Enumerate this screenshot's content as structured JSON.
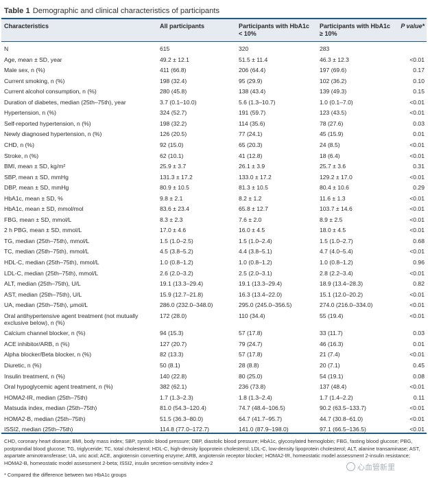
{
  "caption": {
    "label": "Table 1",
    "title": "Demographic and clinical characteristics of participants"
  },
  "headers": [
    "Characteristics",
    "All participants",
    "Participants with HbA1c < 10%",
    "Participants with HbA1c ≥ 10%",
    "P value*"
  ],
  "rows": [
    [
      "N",
      "615",
      "320",
      "283",
      ""
    ],
    [
      "Age, mean ± SD, year",
      "49.2 ± 12.1",
      "51.5 ± 11.4",
      "46.3 ± 12.3",
      "<0.01"
    ],
    [
      "Male sex, n (%)",
      "411 (66.8)",
      "206 (64.4)",
      "197 (69.6)",
      "0.17"
    ],
    [
      "Current smoking, n (%)",
      "198 (32.4)",
      "95 (29.9)",
      "102 (36.2)",
      "0.10"
    ],
    [
      "Current alcohol consumption, n (%)",
      "280 (45.8)",
      "138 (43.4)",
      "139 (49.3)",
      "0.15"
    ],
    [
      "Duration of diabetes, median (25th–75th), year",
      "3.7 (0.1–10.0)",
      "5.6 (1.3–10.7)",
      "1.0 (0.1–7.0)",
      "<0.01"
    ],
    [
      "Hypertension, n (%)",
      "324 (52.7)",
      "191 (59.7)",
      "123 (43.5)",
      "<0.01"
    ],
    [
      "Self-reported hypertension, n (%)",
      "198 (32.2)",
      "114 (35.6)",
      "78 (27.6)",
      "0.03"
    ],
    [
      "Newly diagnosed hypertension, n (%)",
      "126 (20.5)",
      "77 (24.1)",
      "45 (15.9)",
      "0.01"
    ],
    [
      "CHD, n (%)",
      "92 (15.0)",
      "65 (20.3)",
      "24 (8.5)",
      "<0.01"
    ],
    [
      "Stroke, n (%)",
      "62 (10.1)",
      "41 (12.8)",
      "18 (6.4)",
      "<0.01"
    ],
    [
      "BMI, mean ± SD, kg/m²",
      "25.9 ± 3.7",
      "26.1 ± 3.9",
      "25.7 ± 3.6",
      "0.31"
    ],
    [
      "SBP, mean ± SD, mmHg",
      "131.3 ± 17.2",
      "133.0 ± 17.2",
      "129.2 ± 17.0",
      "<0.01"
    ],
    [
      "DBP, mean ± SD, mmHg",
      "80.9 ± 10.5",
      "81.3 ± 10.5",
      "80.4 ± 10.6",
      "0.29"
    ],
    [
      "HbA1c, mean ± SD, %",
      "9.8 ± 2.1",
      "8.2 ± 1.2",
      "11.6 ± 1.3",
      "<0.01"
    ],
    [
      "HbA1c, mean ± SD, mmol/mol",
      "83.6 ± 23.4",
      "65.8 ± 12.7",
      "103.7 ± 14.6",
      "<0.01"
    ],
    [
      "FBG, mean ± SD, mmol/L",
      "8.3 ± 2.3",
      "7.6 ± 2.0",
      "8.9 ± 2.5",
      "<0.01"
    ],
    [
      "2 h PBG, mean ± SD, mmol/L",
      "17.0 ± 4.6",
      "16.0 ± 4.5",
      "18.0 ± 4.5",
      "<0.01"
    ],
    [
      "TG, median (25th–75th), mmol/L",
      "1.5 (1.0–2.5)",
      "1.5 (1.0–2.4)",
      "1.5 (1.0–2.7)",
      "0.68"
    ],
    [
      "TC, median (25th–75th), mmol/L",
      "4.5 (3.8–5.2)",
      "4.4 (3.8–5.1)",
      "4.7 (4.0–5.4)",
      "<0.01"
    ],
    [
      "HDL-C, median (25th–75th), mmol/L",
      "1.0 (0.8–1.2)",
      "1.0 (0.8–1.2)",
      "1.0 (0.8–1.2)",
      "0.96"
    ],
    [
      "LDL-C, median (25th–75th), mmol/L",
      "2.6 (2.0–3.2)",
      "2.5 (2.0–3.1)",
      "2.8 (2.2–3.4)",
      "<0.01"
    ],
    [
      "ALT, median (25th–75th), U/L",
      "19.1 (13.3–29.4)",
      "19.1 (13.3–29.4)",
      "18.9 (13.4–28.3)",
      "0.82"
    ],
    [
      "AST, median (25th–75th), U/L",
      "15.9 (12.7–21.8)",
      "16.3 (13.4–22.0)",
      "15.1 (12.0–20.2)",
      "<0.01"
    ],
    [
      "UA, median (25th–75th), μmol/L",
      "286.0 (232.0–348.0)",
      "295.0 (245.0–356.5)",
      "274.0 (216.0–334.0)",
      "<0.01"
    ],
    [
      "Oral antihypertensive agent treatment (not mutually exclusive below), n (%)",
      "172 (28.0)",
      "110 (34.4)",
      "55 (19.4)",
      "<0.01"
    ],
    [
      "Calcium channel blocker, n (%)",
      "94 (15.3)",
      "57 (17.8)",
      "33 (11.7)",
      "0.03"
    ],
    [
      "ACE inhibitor/ARB, n (%)",
      "127 (20.7)",
      "79 (24.7)",
      "46 (16.3)",
      "0.01"
    ],
    [
      "Alpha blocker/Beta blocker, n (%)",
      "82 (13.3)",
      "57 (17.8)",
      "21 (7.4)",
      "<0.01"
    ],
    [
      "Diuretic, n (%)",
      "50 (8.1)",
      "28 (8.8)",
      "20 (7.1)",
      "0.45"
    ],
    [
      "Insulin treatment, n (%)",
      "140 (22.8)",
      "80 (25.0)",
      "54 (19.1)",
      "0.08"
    ],
    [
      "Oral hypoglycemic agent treatment, n (%)",
      "382 (62.1)",
      "236 (73.8)",
      "137 (48.4)",
      "<0.01"
    ],
    [
      "HOMA2-IR, median (25th–75th)",
      "1.7 (1.3–2.3)",
      "1.8 (1.3–2.4)",
      "1.7 (1.4–2.2)",
      "0.11"
    ],
    [
      "Matsuda index, median (25th–75th)",
      "81.0 (54.3–120.4)",
      "74.7 (48.4–106.5)",
      "90.2 (63.5–133.7)",
      "<0.01"
    ],
    [
      "HOMA2-B, median (25th–75th)",
      "51.5 (36.3–80.0)",
      "64.7 (41.7–95.7)",
      "44.7 (30.8–61.0)",
      "<0.01"
    ],
    [
      "ISSI2, median (25th–75th)",
      "114.8 (77.0–172.7)",
      "141.0 (87.9–198.0)",
      "97.1 (66.5–136.5)",
      "<0.01"
    ]
  ],
  "footnote": "CHD, coronary heart disease; BMI, body mass index; SBP, systolic blood pressure; DBP, diastolic blood pressure; HbA1c, glycosylated hemoglobin; FBG, fasting blood glucose; PBG, postprandial blood glucose; TG, triglyceride; TC, total cholesterol; HDL-C, high-density lipoprotein cholesterol; LDL-C, low-density lipoprotein cholesterol; ALT, alanine transaminase; AST, aspartate aminotransferase; UA, uric acid; ACE, angiotensin converting enzyme; ARB, angiotensin receptor blocker; HOMA2-IR, homeostatic model assessment 2-insulin resistance; HOMA2-B, homeostatic model assessment 2-beta; ISSI2, insulin secretion-sensitivity index-2",
  "footnote_star": "* Compared the difference between two HbA1c groups",
  "watermark": "心血管新里",
  "colors": {
    "rule": "#1e5a86",
    "header_bg": "#e6ebf1"
  }
}
